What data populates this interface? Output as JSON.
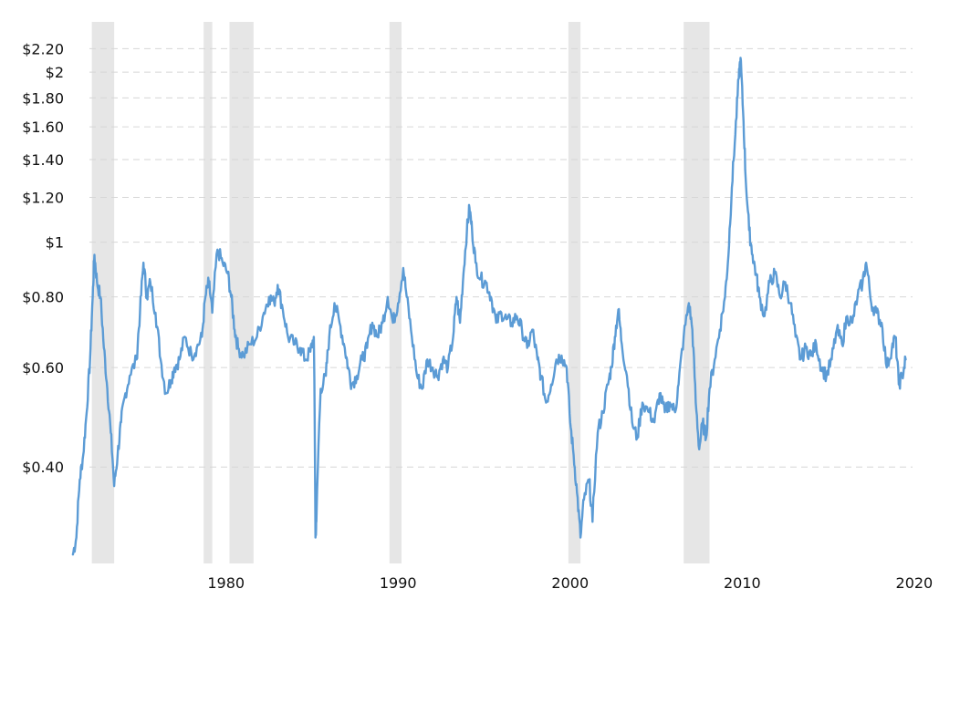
{
  "colors": {
    "series": "#5b9bd5",
    "band": "#e6e6e6",
    "grid": "#d6d6d6",
    "text": "#111111"
  },
  "chart_data": {
    "type": "line",
    "title": "",
    "xlabel": "",
    "ylabel": "",
    "y_scale": "log",
    "grid": "horizontal dashed",
    "legend": "none",
    "xlim": [
      1971.0,
      2019.9
    ],
    "ylim": [
      0.27,
      2.4
    ],
    "x_ticks": [
      {
        "value": 1980,
        "label": "1980"
      },
      {
        "value": 1990,
        "label": "1990"
      },
      {
        "value": 2000,
        "label": "2000"
      },
      {
        "value": 2010,
        "label": "2010"
      },
      {
        "value": 2020,
        "label": "2020"
      }
    ],
    "y_ticks": [
      {
        "value": 2.2,
        "label": "$2.20"
      },
      {
        "value": 2.0,
        "label": "$2"
      },
      {
        "value": 1.8,
        "label": "$1.80"
      },
      {
        "value": 1.6,
        "label": "$1.60"
      },
      {
        "value": 1.4,
        "label": "$1.40"
      },
      {
        "value": 1.2,
        "label": "$1.20"
      },
      {
        "value": 1.0,
        "label": "$1"
      },
      {
        "value": 0.8,
        "label": "$0.80"
      },
      {
        "value": 0.6,
        "label": "$0.60"
      },
      {
        "value": 0.4,
        "label": "$0.40"
      }
    ],
    "shaded_periods": [
      [
        1972.2,
        1973.5
      ],
      [
        1978.7,
        1979.2
      ],
      [
        1980.2,
        1981.6
      ],
      [
        1989.5,
        1990.2
      ],
      [
        1999.9,
        2000.6
      ],
      [
        2006.6,
        2008.1
      ]
    ],
    "series": [
      {
        "points": [
          [
            1971.1,
            0.28
          ],
          [
            1971.3,
            0.3
          ],
          [
            1971.5,
            0.38
          ],
          [
            1971.7,
            0.42
          ],
          [
            1971.9,
            0.5
          ],
          [
            1972.1,
            0.62
          ],
          [
            1972.25,
            0.8
          ],
          [
            1972.35,
            0.95
          ],
          [
            1972.5,
            0.85
          ],
          [
            1972.7,
            0.8
          ],
          [
            1972.9,
            0.65
          ],
          [
            1973.1,
            0.55
          ],
          [
            1973.3,
            0.46
          ],
          [
            1973.5,
            0.37
          ],
          [
            1973.7,
            0.42
          ],
          [
            1973.9,
            0.48
          ],
          [
            1974.1,
            0.53
          ],
          [
            1974.4,
            0.58
          ],
          [
            1974.8,
            0.62
          ],
          [
            1975.0,
            0.75
          ],
          [
            1975.2,
            0.92
          ],
          [
            1975.4,
            0.8
          ],
          [
            1975.6,
            0.85
          ],
          [
            1975.9,
            0.75
          ],
          [
            1976.2,
            0.62
          ],
          [
            1976.5,
            0.54
          ],
          [
            1976.8,
            0.57
          ],
          [
            1977.0,
            0.6
          ],
          [
            1977.3,
            0.62
          ],
          [
            1977.6,
            0.68
          ],
          [
            1978.0,
            0.63
          ],
          [
            1978.3,
            0.65
          ],
          [
            1978.6,
            0.68
          ],
          [
            1978.8,
            0.8
          ],
          [
            1979.0,
            0.85
          ],
          [
            1979.2,
            0.75
          ],
          [
            1979.5,
            0.97
          ],
          [
            1979.8,
            0.92
          ],
          [
            1980.1,
            0.88
          ],
          [
            1980.3,
            0.8
          ],
          [
            1980.5,
            0.7
          ],
          [
            1980.7,
            0.65
          ],
          [
            1981.0,
            0.63
          ],
          [
            1981.4,
            0.66
          ],
          [
            1981.8,
            0.68
          ],
          [
            1982.2,
            0.75
          ],
          [
            1982.5,
            0.8
          ],
          [
            1982.8,
            0.78
          ],
          [
            1983.0,
            0.84
          ],
          [
            1983.3,
            0.76
          ],
          [
            1983.6,
            0.68
          ],
          [
            1984.0,
            0.66
          ],
          [
            1984.3,
            0.65
          ],
          [
            1984.6,
            0.62
          ],
          [
            1984.9,
            0.64
          ],
          [
            1985.1,
            0.68
          ],
          [
            1985.2,
            0.3
          ],
          [
            1985.25,
            0.32
          ],
          [
            1985.5,
            0.55
          ],
          [
            1985.8,
            0.58
          ],
          [
            1986.0,
            0.68
          ],
          [
            1986.3,
            0.78
          ],
          [
            1986.6,
            0.72
          ],
          [
            1986.9,
            0.65
          ],
          [
            1987.1,
            0.6
          ],
          [
            1987.3,
            0.56
          ],
          [
            1987.6,
            0.58
          ],
          [
            1987.9,
            0.62
          ],
          [
            1988.2,
            0.65
          ],
          [
            1988.5,
            0.72
          ],
          [
            1988.8,
            0.68
          ],
          [
            1989.1,
            0.72
          ],
          [
            1989.4,
            0.8
          ],
          [
            1989.7,
            0.72
          ],
          [
            1990.0,
            0.78
          ],
          [
            1990.3,
            0.9
          ],
          [
            1990.5,
            0.8
          ],
          [
            1990.8,
            0.68
          ],
          [
            1991.1,
            0.58
          ],
          [
            1991.4,
            0.55
          ],
          [
            1991.7,
            0.62
          ],
          [
            1992.0,
            0.6
          ],
          [
            1992.3,
            0.58
          ],
          [
            1992.6,
            0.62
          ],
          [
            1992.9,
            0.6
          ],
          [
            1993.2,
            0.68
          ],
          [
            1993.4,
            0.8
          ],
          [
            1993.6,
            0.72
          ],
          [
            1993.8,
            0.88
          ],
          [
            1994.0,
            1.05
          ],
          [
            1994.15,
            1.15
          ],
          [
            1994.3,
            1.05
          ],
          [
            1994.5,
            0.92
          ],
          [
            1994.8,
            0.86
          ],
          [
            1995.1,
            0.85
          ],
          [
            1995.4,
            0.8
          ],
          [
            1995.7,
            0.72
          ],
          [
            1996.0,
            0.75
          ],
          [
            1996.3,
            0.73
          ],
          [
            1996.6,
            0.72
          ],
          [
            1996.9,
            0.74
          ],
          [
            1997.2,
            0.7
          ],
          [
            1997.5,
            0.65
          ],
          [
            1997.8,
            0.7
          ],
          [
            1998.1,
            0.62
          ],
          [
            1998.3,
            0.58
          ],
          [
            1998.6,
            0.52
          ],
          [
            1998.9,
            0.56
          ],
          [
            1999.2,
            0.62
          ],
          [
            1999.5,
            0.63
          ],
          [
            1999.8,
            0.6
          ],
          [
            2000.0,
            0.48
          ],
          [
            2000.2,
            0.42
          ],
          [
            2000.4,
            0.36
          ],
          [
            2000.6,
            0.3
          ],
          [
            2000.8,
            0.35
          ],
          [
            2001.1,
            0.38
          ],
          [
            2001.3,
            0.32
          ],
          [
            2001.6,
            0.46
          ],
          [
            2001.9,
            0.5
          ],
          [
            2002.2,
            0.56
          ],
          [
            2002.4,
            0.6
          ],
          [
            2002.6,
            0.68
          ],
          [
            2002.8,
            0.76
          ],
          [
            2003.0,
            0.66
          ],
          [
            2003.3,
            0.58
          ],
          [
            2003.6,
            0.48
          ],
          [
            2003.9,
            0.45
          ],
          [
            2004.2,
            0.52
          ],
          [
            2004.6,
            0.5
          ],
          [
            2004.9,
            0.48
          ],
          [
            2005.2,
            0.54
          ],
          [
            2005.5,
            0.5
          ],
          [
            2005.8,
            0.52
          ],
          [
            2006.1,
            0.5
          ],
          [
            2006.3,
            0.56
          ],
          [
            2006.6,
            0.68
          ],
          [
            2006.9,
            0.78
          ],
          [
            2007.1,
            0.7
          ],
          [
            2007.3,
            0.52
          ],
          [
            2007.5,
            0.43
          ],
          [
            2007.7,
            0.48
          ],
          [
            2007.9,
            0.45
          ],
          [
            2008.1,
            0.55
          ],
          [
            2008.4,
            0.62
          ],
          [
            2008.7,
            0.7
          ],
          [
            2009.0,
            0.8
          ],
          [
            2009.2,
            0.95
          ],
          [
            2009.4,
            1.25
          ],
          [
            2009.6,
            1.55
          ],
          [
            2009.8,
            1.95
          ],
          [
            2009.9,
            2.12
          ],
          [
            2010.05,
            1.7
          ],
          [
            2010.2,
            1.3
          ],
          [
            2010.4,
            1.05
          ],
          [
            2010.6,
            0.95
          ],
          [
            2010.8,
            0.88
          ],
          [
            2011.0,
            0.8
          ],
          [
            2011.3,
            0.74
          ],
          [
            2011.6,
            0.85
          ],
          [
            2011.9,
            0.88
          ],
          [
            2012.2,
            0.8
          ],
          [
            2012.5,
            0.85
          ],
          [
            2012.8,
            0.78
          ],
          [
            2013.1,
            0.68
          ],
          [
            2013.4,
            0.62
          ],
          [
            2013.7,
            0.65
          ],
          [
            2014.0,
            0.63
          ],
          [
            2014.3,
            0.66
          ],
          [
            2014.6,
            0.6
          ],
          [
            2014.9,
            0.58
          ],
          [
            2015.2,
            0.62
          ],
          [
            2015.5,
            0.7
          ],
          [
            2015.8,
            0.66
          ],
          [
            2016.1,
            0.74
          ],
          [
            2016.4,
            0.72
          ],
          [
            2016.7,
            0.8
          ],
          [
            2017.0,
            0.85
          ],
          [
            2017.2,
            0.92
          ],
          [
            2017.5,
            0.78
          ],
          [
            2017.8,
            0.75
          ],
          [
            2018.1,
            0.72
          ],
          [
            2018.4,
            0.6
          ],
          [
            2018.7,
            0.65
          ],
          [
            2018.9,
            0.68
          ],
          [
            2019.1,
            0.56
          ],
          [
            2019.3,
            0.58
          ],
          [
            2019.5,
            0.62
          ]
        ]
      }
    ]
  }
}
